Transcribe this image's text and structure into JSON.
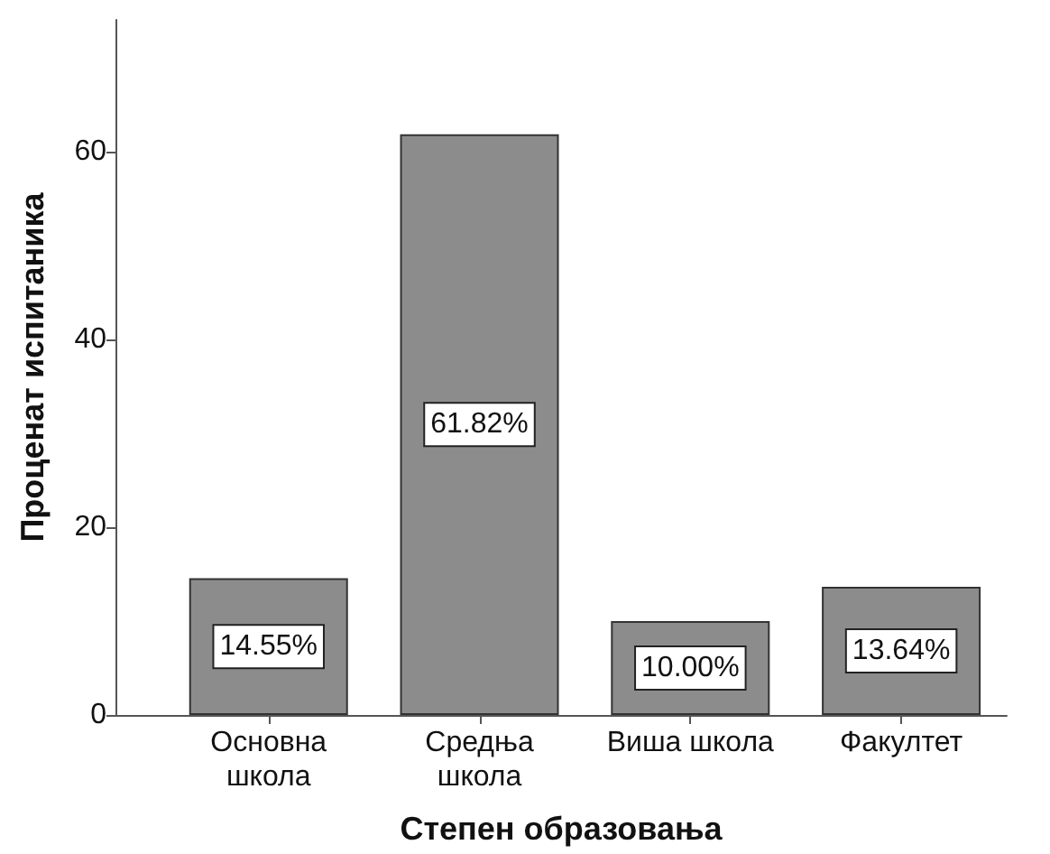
{
  "chart_data": {
    "type": "bar",
    "xlabel": "Степен образовања",
    "ylabel": "Проценат испитаника",
    "categories": [
      "Основна школа",
      "Средња школа",
      "Виша школа",
      "Факултет"
    ],
    "values": [
      14.55,
      61.82,
      10.0,
      13.64
    ],
    "value_labels": [
      "14.55%",
      "61.82%",
      "10.00%",
      "13.64%"
    ],
    "color": "#8c8c8c",
    "ylim": [
      0,
      74
    ],
    "yticks": [
      0,
      20,
      40,
      60
    ]
  }
}
